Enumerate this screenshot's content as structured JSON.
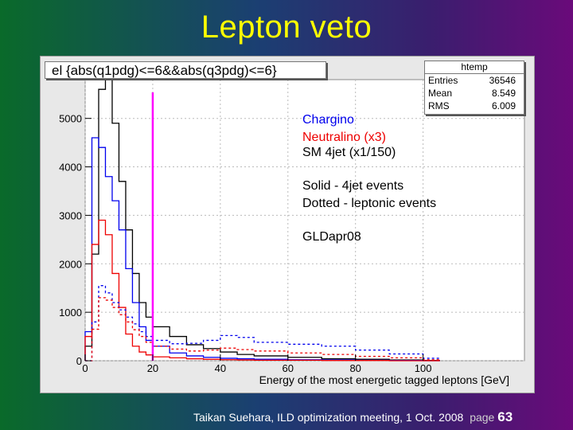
{
  "slide": {
    "title": "Lepton veto",
    "footer": "Taikan Suehara, ILD optimization meeting, 1 Oct. 2008",
    "page_label": "page",
    "page_number": "63"
  },
  "selection": "el {abs(q1pdg)<=6&&abs(q3pdg)<=6}",
  "stats": {
    "name": "htemp",
    "rows": [
      {
        "label": "Entries",
        "value": "36546"
      },
      {
        "label": "Mean",
        "value": "8.549"
      },
      {
        "label": "RMS",
        "value": "6.009"
      }
    ]
  },
  "legend": {
    "lines": [
      {
        "text": "Chargino",
        "color": "#0000ee"
      },
      {
        "text": "Neutralino (x3)",
        "color": "#ee0000"
      },
      {
        "text": "SM 4jet (x1/150)",
        "color": "#000000"
      },
      {
        "text": "Solid - 4jet events",
        "color": "#000000"
      },
      {
        "text": "Dotted - leptonic events",
        "color": "#000000"
      },
      {
        "text": "GLDapr08",
        "color": "#000000"
      }
    ]
  },
  "chart_data": {
    "type": "line",
    "title": "el {abs(q1pdg)<=6&&abs(q3pdg)<=6}",
    "xlabel": "Energy of the most energetic tagged leptons [GeV]",
    "ylabel": "",
    "xlim": [
      0,
      130
    ],
    "ylim": [
      0,
      5800
    ],
    "xticks": [
      0,
      20,
      40,
      60,
      80,
      100
    ],
    "yticks": [
      0,
      1000,
      2000,
      3000,
      4000,
      5000
    ],
    "cut_line": {
      "x": 20,
      "color": "#ff00ff"
    },
    "x": [
      0,
      2,
      4,
      6,
      8,
      10,
      12,
      14,
      16,
      18,
      20,
      25,
      30,
      35,
      40,
      45,
      50,
      60,
      70,
      80,
      90,
      100
    ],
    "series": [
      {
        "name": "SM 4jet (x1/150) solid",
        "color": "#000000",
        "style": "solid",
        "values": [
          300,
          2200,
          5600,
          5800,
          4900,
          3700,
          2700,
          1800,
          1200,
          900,
          700,
          500,
          330,
          250,
          180,
          130,
          100,
          70,
          40,
          30,
          15,
          5
        ]
      },
      {
        "name": "Chargino solid",
        "color": "#0000ee",
        "style": "solid",
        "values": [
          600,
          4600,
          4400,
          3800,
          3300,
          2700,
          1900,
          1200,
          700,
          420,
          300,
          160,
          100,
          70,
          50,
          40,
          30,
          20,
          15,
          10,
          5,
          0
        ]
      },
      {
        "name": "Neutralino (x3) solid",
        "color": "#ee0000",
        "style": "solid",
        "values": [
          500,
          2400,
          2900,
          2600,
          1800,
          1100,
          550,
          300,
          180,
          120,
          80,
          60,
          40,
          30,
          20,
          15,
          10,
          10,
          5,
          5,
          0,
          0
        ]
      },
      {
        "name": "Chargino dotted",
        "color": "#0000ee",
        "style": "dotted",
        "values": [
          0,
          800,
          1550,
          1400,
          1200,
          1050,
          900,
          760,
          600,
          500,
          420,
          350,
          360,
          420,
          520,
          480,
          380,
          340,
          300,
          220,
          140,
          50
        ]
      },
      {
        "name": "Neutralino (x3) dotted",
        "color": "#ee0000",
        "style": "dotted",
        "values": [
          0,
          650,
          1300,
          1250,
          1100,
          950,
          800,
          640,
          500,
          380,
          300,
          240,
          200,
          220,
          260,
          230,
          200,
          160,
          130,
          90,
          60,
          20
        ]
      }
    ]
  }
}
